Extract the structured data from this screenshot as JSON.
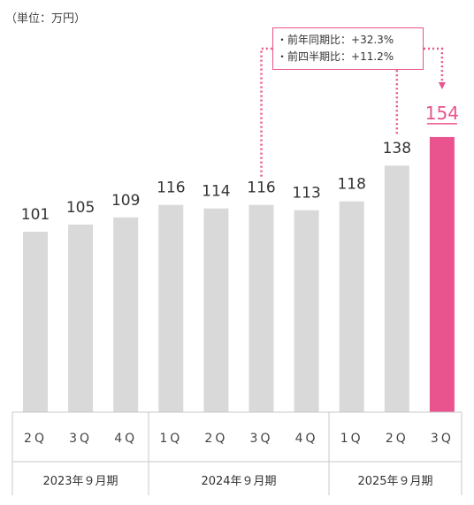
{
  "unit_label": "（単位：万円）",
  "callout": {
    "yoy": "前年同期比：+32.3%",
    "qoq": "前四半期比：+11.2%"
  },
  "colors": {
    "bar": "#d9d9d9",
    "highlight": "#e9548e",
    "axis": "#c8c8c8"
  },
  "chart_data": {
    "type": "bar",
    "categories": [
      "2Q",
      "3Q",
      "4Q",
      "1Q",
      "2Q",
      "3Q",
      "4Q",
      "1Q",
      "2Q",
      "3Q"
    ],
    "values": [
      101,
      105,
      109,
      116,
      114,
      116,
      113,
      118,
      138,
      154
    ],
    "highlight_index": 9,
    "groups": [
      {
        "label": "2023年９月期",
        "start": 0,
        "end": 2
      },
      {
        "label": "2024年９月期",
        "start": 3,
        "end": 6
      },
      {
        "label": "2025年９月期",
        "start": 7,
        "end": 9
      }
    ],
    "ylim": [
      0,
      154
    ]
  }
}
